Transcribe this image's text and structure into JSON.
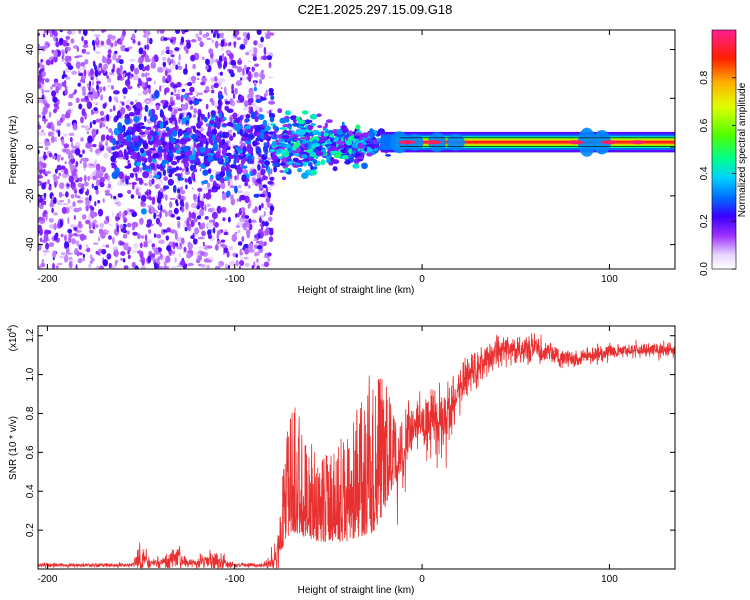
{
  "title": "C2E1.2025.297.15.09.G18",
  "chart_data": [
    {
      "type": "heatmap",
      "name": "spectrogram",
      "xlabel": "Height of straight line (km)",
      "ylabel": "Frequency (Hz)",
      "xlim": [
        -205,
        135
      ],
      "ylim": [
        -50,
        48
      ],
      "xticks": [
        -200,
        -100,
        0,
        100
      ],
      "xtick_labels": [
        "-200",
        "-100",
        "0",
        "100"
      ],
      "yticks": [
        -40,
        -20,
        0,
        20,
        40
      ],
      "ytick_labels": [
        "-40",
        "-20",
        "0",
        "20",
        "40"
      ],
      "line_frequency_hz": 2,
      "regions": [
        {
          "x": [
            -205,
            -80
          ],
          "level": 0.2,
          "spread_hz": 48,
          "description_value": "scattered low amplitude"
        },
        {
          "x": [
            -80,
            -20
          ],
          "level": 0.35,
          "spread_hz": 8
        },
        {
          "x": [
            -20,
            135
          ],
          "level": 0.95,
          "spread_hz": 2
        }
      ],
      "colorbar": {
        "label": "Normalized spectral amplitude",
        "range": [
          0,
          1
        ],
        "ticks": [
          0.0,
          0.2,
          0.4,
          0.6,
          0.8
        ],
        "tick_labels": [
          "0.0",
          "0.2",
          "0.4",
          "0.6",
          "0.8"
        ]
      }
    },
    {
      "type": "line",
      "name": "snr",
      "xlabel": "Height of straight line (km)",
      "ylabel": "SNR (10 * v/v)",
      "scale_label": "(x10",
      "scale_exp": "4",
      "scale_close": ")",
      "xlim": [
        -205,
        135
      ],
      "ylim": [
        0,
        1.25
      ],
      "xticks": [
        -200,
        -100,
        0,
        100
      ],
      "xtick_labels": [
        "-200",
        "-100",
        "0",
        "100"
      ],
      "yticks": [
        0.2,
        0.4,
        0.6,
        0.8,
        1.0,
        1.2
      ],
      "ytick_labels": [
        "0.2",
        "0.4",
        "0.6",
        "0.8",
        "1.0",
        "1.2"
      ],
      "color": "#e83030",
      "envelope": [
        {
          "x": -205,
          "base": 0.02,
          "noise": 0.015
        },
        {
          "x": -155,
          "base": 0.02,
          "noise": 0.015
        },
        {
          "x": -150,
          "base": 0.06,
          "noise": 0.12
        },
        {
          "x": -145,
          "base": 0.03,
          "noise": 0.03
        },
        {
          "x": -130,
          "base": 0.05,
          "noise": 0.08
        },
        {
          "x": -125,
          "base": 0.03,
          "noise": 0.03
        },
        {
          "x": -110,
          "base": 0.04,
          "noise": 0.07
        },
        {
          "x": -100,
          "base": 0.02,
          "noise": 0.015
        },
        {
          "x": -85,
          "base": 0.02,
          "noise": 0.015
        },
        {
          "x": -78,
          "base": 0.05,
          "noise": 0.1
        },
        {
          "x": -70,
          "base": 0.2,
          "noise": 0.7
        },
        {
          "x": -55,
          "base": 0.15,
          "noise": 0.45
        },
        {
          "x": -40,
          "base": 0.15,
          "noise": 0.55
        },
        {
          "x": -25,
          "base": 0.2,
          "noise": 0.9
        },
        {
          "x": -15,
          "base": 0.45,
          "noise": 0.4
        },
        {
          "x": -5,
          "base": 0.75,
          "noise": 0.2
        },
        {
          "x": 10,
          "base": 0.75,
          "noise": 0.3
        },
        {
          "x": 25,
          "base": 1.0,
          "noise": 0.15
        },
        {
          "x": 40,
          "base": 1.12,
          "noise": 0.12
        },
        {
          "x": 60,
          "base": 1.13,
          "noise": 0.1
        },
        {
          "x": 80,
          "base": 1.08,
          "noise": 0.07
        },
        {
          "x": 100,
          "base": 1.12,
          "noise": 0.06
        },
        {
          "x": 135,
          "base": 1.13,
          "noise": 0.05
        }
      ]
    }
  ]
}
